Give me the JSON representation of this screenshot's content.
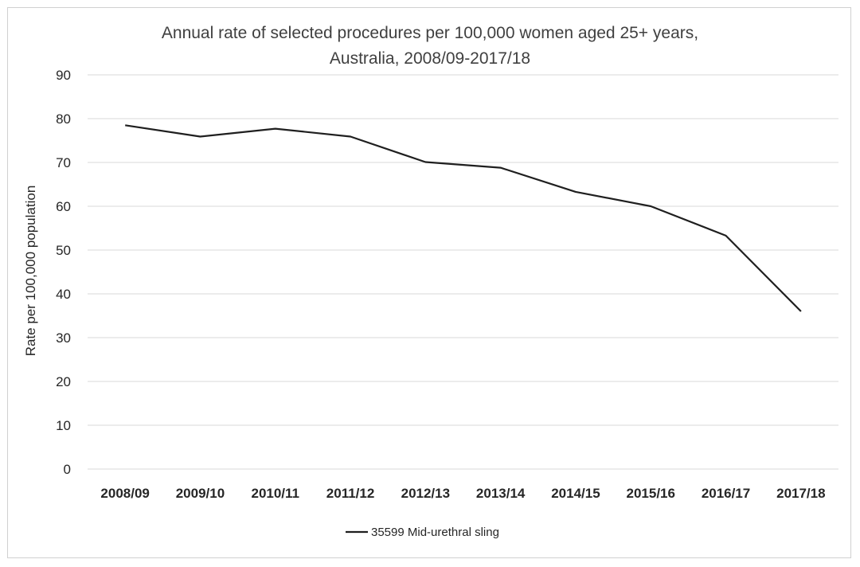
{
  "chart_data": {
    "type": "line",
    "title_line1": "Annual rate of selected procedures per 100,000 women aged 25+ years,",
    "title_line2": "Australia, 2008/09-2017/18",
    "xlabel": "",
    "ylabel": "Rate per 100,000 population",
    "ylim": [
      0,
      90
    ],
    "yticks": [
      0,
      10,
      20,
      30,
      40,
      50,
      60,
      70,
      80,
      90
    ],
    "grid": true,
    "legend_position": "bottom",
    "categories": [
      "2008/09",
      "2009/10",
      "2010/11",
      "2011/12",
      "2012/13",
      "2013/14",
      "2014/15",
      "2015/16",
      "2016/17",
      "2017/18"
    ],
    "series": [
      {
        "name": "35599 Mid-urethral sling",
        "color": "#1f1f1f",
        "values": [
          78.5,
          75.9,
          77.7,
          75.9,
          70.1,
          68.8,
          63.3,
          60.0,
          53.3,
          36.0
        ]
      }
    ]
  }
}
